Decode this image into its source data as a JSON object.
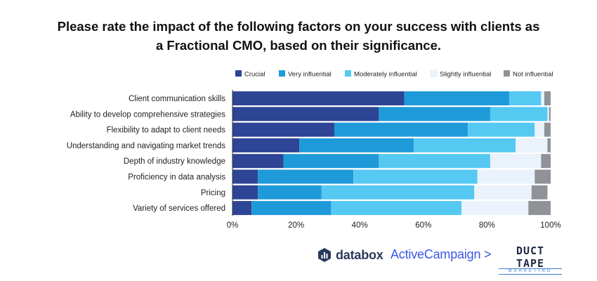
{
  "chart_data": {
    "type": "bar",
    "orientation": "horizontal",
    "stacked": true,
    "title_lines": [
      "Please rate the impact of the following factors on your success with clients as",
      "a Fractional CMO, based on their significance."
    ],
    "categories": [
      "Client communication skills",
      "Ability to develop comprehensive strategies",
      "Flexibility to adapt to client needs",
      "Understanding and navigating market trends",
      "Depth of industry knowledge",
      "Proficiency in data analysis",
      "Pricing",
      "Variety of services offered"
    ],
    "series": [
      {
        "name": "Crucial",
        "color": "#2e4494",
        "values": [
          54,
          46,
          32,
          21,
          16,
          8,
          8,
          6
        ]
      },
      {
        "name": "Very influential",
        "color": "#1f9ad9",
        "values": [
          33,
          35,
          42,
          36,
          30,
          30,
          20,
          25
        ]
      },
      {
        "name": "Moderately influential",
        "color": "#56c9f3",
        "values": [
          10,
          18,
          21,
          32,
          35,
          39,
          48,
          41
        ]
      },
      {
        "name": "Slightly influential",
        "color": "#eaf3fb",
        "values": [
          1,
          0.5,
          3,
          10,
          16,
          18,
          18,
          21
        ]
      },
      {
        "name": "Not influential",
        "color": "#8f9397",
        "values": [
          2,
          0.5,
          2,
          1,
          3,
          5,
          5,
          7
        ]
      }
    ],
    "xlim": [
      0,
      100
    ],
    "xticks": [
      "0%",
      "20%",
      "40%",
      "60%",
      "80%",
      "100%"
    ],
    "legend_position": "top-right"
  },
  "footer": {
    "databox_label": "databox",
    "activecampaign_label": "ActiveCampaign >",
    "ducttape_main": "DUCT TAPE",
    "ducttape_sub": "MARKETING"
  }
}
